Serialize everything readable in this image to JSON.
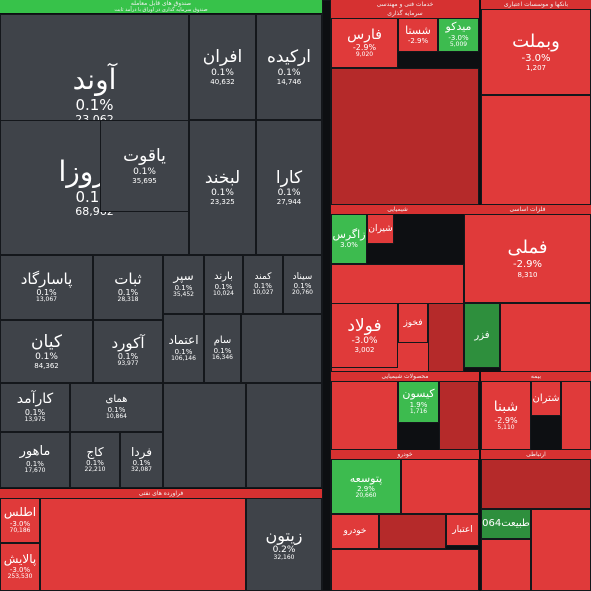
{
  "chart_data": {
    "type": "treemap",
    "colors": {
      "neutral": "#3f4349",
      "red": "#e03a3a",
      "red_dark": "#b52a2a",
      "green": "#3dbb4f",
      "green_dark": "#2e8f3d",
      "header_green": "#37c24a",
      "header_red": "#d63131"
    },
    "groups": [
      {
        "name": "صندوق های قابل معامله",
        "subtitle": "صندوق سرمایه گذاری در اوراق با درآمد ثابت"
      },
      {
        "name": "خدمات فنی و مهندسی"
      },
      {
        "name": "بانکها و موسسات اعتباری"
      },
      {
        "name": "سرمایه گذاری"
      },
      {
        "name": "فلزات اساسی"
      },
      {
        "name": "شیمیایی"
      },
      {
        "name": "محصولات شیمیایی"
      },
      {
        "name": "فراورده های نفتی"
      },
      {
        "name": "خودرو"
      },
      {
        "name": "ارتباطی"
      },
      {
        "name": "بیمه"
      }
    ],
    "tiles": [
      {
        "name": "آوند",
        "change": "0.1%",
        "value": "23,062",
        "trend": "neutral",
        "fs": 28
      },
      {
        "name": "افران",
        "change": "0.1%",
        "value": "40,632",
        "trend": "neutral",
        "fs": 17
      },
      {
        "name": "ارکیده",
        "change": "0.1%",
        "value": "14,746",
        "trend": "neutral",
        "fs": 17
      },
      {
        "name": "فیروزا",
        "change": "0.1%",
        "value": "68,962",
        "trend": "neutral",
        "fs": 28
      },
      {
        "name": "یاقوت",
        "change": "0.1%",
        "value": "35,695",
        "trend": "neutral",
        "fs": 17
      },
      {
        "name": "لبخند",
        "change": "0.1%",
        "value": "23,325",
        "trend": "neutral",
        "fs": 17
      },
      {
        "name": "کارا",
        "change": "0.1%",
        "value": "27,944",
        "trend": "neutral",
        "fs": 17
      },
      {
        "name": "پاسارگاد",
        "change": "0.1%",
        "value": "13,067",
        "trend": "neutral",
        "fs": 15
      },
      {
        "name": "ثبات",
        "change": "0.1%",
        "value": "28,318",
        "trend": "neutral",
        "fs": 15
      },
      {
        "name": "سپر",
        "change": "0.1%",
        "value": "35,452",
        "trend": "neutral",
        "fs": 12
      },
      {
        "name": "بارند",
        "change": "0.1%",
        "value": "10,024",
        "trend": "neutral",
        "fs": 10
      },
      {
        "name": "کمند",
        "change": "0.1%",
        "value": "10,027",
        "trend": "neutral",
        "fs": 9
      },
      {
        "name": "سیناد",
        "change": "0.1%",
        "value": "20,760",
        "trend": "neutral",
        "fs": 9
      },
      {
        "name": "کیان",
        "change": "0.1%",
        "value": "84,362",
        "trend": "neutral",
        "fs": 17
      },
      {
        "name": "آکورد",
        "change": "0.1%",
        "value": "93,977",
        "trend": "neutral",
        "fs": 15
      },
      {
        "name": "اعتماد",
        "change": "0.1%",
        "value": "106,146",
        "trend": "neutral",
        "fs": 12
      },
      {
        "name": "سام",
        "change": "0.1%",
        "value": "16,346",
        "trend": "neutral",
        "fs": 10
      },
      {
        "name": "کارآمد",
        "change": "0.1%",
        "value": "13,975",
        "trend": "neutral",
        "fs": 14
      },
      {
        "name": "همای",
        "change": "0.1%",
        "value": "10,864",
        "trend": "neutral",
        "fs": 10
      },
      {
        "name": "ماهور",
        "change": "0.1%",
        "value": "17,670",
        "trend": "neutral",
        "fs": 13
      },
      {
        "name": "کاج",
        "change": "0.1%",
        "value": "22,210",
        "trend": "neutral",
        "fs": 12
      },
      {
        "name": "فردا",
        "change": "0.1%",
        "value": "32,087",
        "trend": "neutral",
        "fs": 12
      },
      {
        "name": "زیتون",
        "change": "0.2%",
        "value": "32,160",
        "trend": "neutral",
        "fs": 16
      },
      {
        "name": "اطلس",
        "change": "-3.0%",
        "value": "70,186",
        "trend": "red",
        "fs": 12
      },
      {
        "name": "پالایش",
        "change": "-3.0%",
        "value": "253,530",
        "trend": "red",
        "fs": 12
      },
      {
        "name": "فارس",
        "change": "-2.9%",
        "value": "9,020",
        "trend": "red",
        "fs": 14
      },
      {
        "name": "شستا",
        "change": "-2.9%",
        "value": "",
        "trend": "red",
        "fs": 11
      },
      {
        "name": "میدکو",
        "change": "-3.0%",
        "value": "5,009",
        "trend": "green",
        "fs": 11
      },
      {
        "name": "وبملت",
        "change": "-3.0%",
        "value": "1,207",
        "trend": "red",
        "fs": 18
      },
      {
        "name": "زاگرس",
        "change": "3.0%",
        "value": "",
        "trend": "green",
        "fs": 11
      },
      {
        "name": "شیران",
        "change": "",
        "value": "",
        "trend": "red",
        "fs": 9
      },
      {
        "name": "فملی",
        "change": "-2.9%",
        "value": "8,310",
        "trend": "red",
        "fs": 18
      },
      {
        "name": "فولاد",
        "change": "-3.0%",
        "value": "3,002",
        "trend": "red",
        "fs": 17
      },
      {
        "name": "فخوز",
        "change": "",
        "value": "",
        "trend": "red",
        "fs": 9
      },
      {
        "name": "فزر",
        "change": "",
        "value": "",
        "trend": "green_dark",
        "fs": 10
      },
      {
        "name": "کیسون",
        "change": "1.9%",
        "value": "1,716",
        "trend": "green",
        "fs": 11
      },
      {
        "name": "شتران",
        "change": "",
        "value": "",
        "trend": "red",
        "fs": 10
      },
      {
        "name": "شبنا",
        "change": "-2.9%",
        "value": "5,110",
        "trend": "red",
        "fs": 14
      },
      {
        "name": "پتوسعه",
        "change": "2.9%",
        "value": "20,660",
        "trend": "green",
        "fs": 11
      },
      {
        "name": "طبیعت064",
        "change": "",
        "value": "",
        "trend": "green_dark",
        "fs": 10
      },
      {
        "name": "خودرو",
        "change": "",
        "value": "",
        "trend": "red",
        "fs": 9
      },
      {
        "name": "اعتبار",
        "change": "",
        "value": "",
        "trend": "red",
        "fs": 9
      }
    ]
  }
}
